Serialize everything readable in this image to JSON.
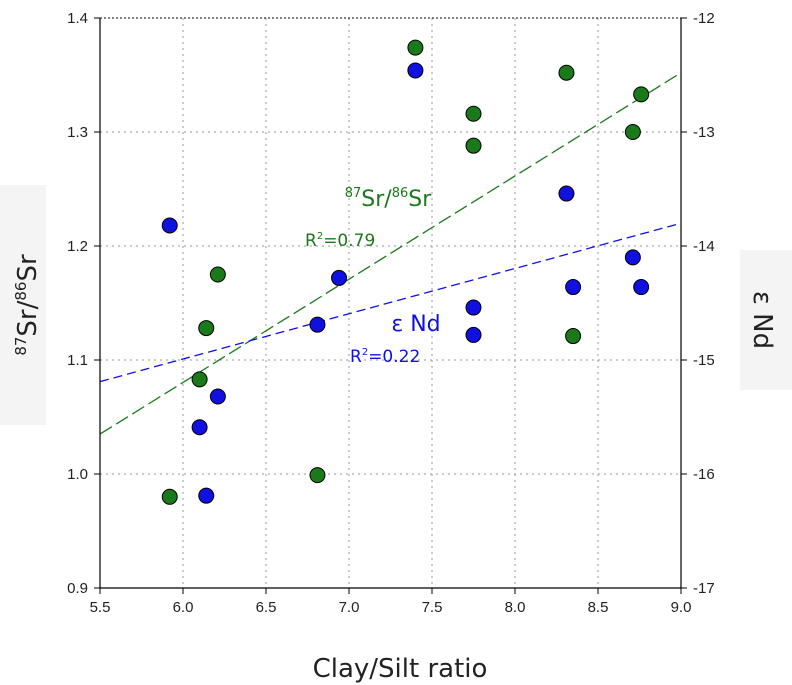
{
  "chart_data": {
    "type": "scatter",
    "xlabel": "Clay/Silt ratio",
    "ylabel_parts": {
      "sup1": "87",
      "base1": "Sr/",
      "sup2": "86",
      "base2": "Sr"
    },
    "y2label": "ε Nd",
    "xlim": [
      5.5,
      9.0
    ],
    "ylim": [
      0.9,
      1.4
    ],
    "y2lim": [
      -17,
      -12
    ],
    "x_ticks": [
      "5.5",
      "6.0",
      "6.5",
      "7.0",
      "7.5",
      "8.0",
      "8.5",
      "9.0"
    ],
    "y_ticks": [
      "0.9",
      "1.0",
      "1.1",
      "1.2",
      "1.3",
      "1.4"
    ],
    "y2_ticks": [
      "-17",
      "-16",
      "-15",
      "-14",
      "-13",
      "-12"
    ],
    "x_tick_values": [
      5.5,
      6.0,
      6.5,
      7.0,
      7.5,
      8.0,
      8.5,
      9.0
    ],
    "y_tick_values": [
      0.9,
      1.0,
      1.1,
      1.2,
      1.3,
      1.4
    ],
    "y2_tick_values": [
      -17,
      -16,
      -15,
      -14,
      -13,
      -12
    ],
    "grid": true,
    "series": [
      {
        "label_parts": {
          "sup1": "87",
          "base1": "Sr/",
          "sup2": "86",
          "base2": "Sr"
        },
        "r2_base": "R",
        "r2_sup": "2",
        "r2_value": "=0.79",
        "axis": "left",
        "color": "#1a7a1a",
        "points": [
          {
            "x": 5.92,
            "y": 0.98
          },
          {
            "x": 6.1,
            "y": 1.083
          },
          {
            "x": 6.14,
            "y": 1.128
          },
          {
            "x": 6.21,
            "y": 1.175
          },
          {
            "x": 6.81,
            "y": 0.999
          },
          {
            "x": 7.4,
            "y": 1.374
          },
          {
            "x": 7.75,
            "y": 1.316
          },
          {
            "x": 7.75,
            "y": 1.288
          },
          {
            "x": 8.31,
            "y": 1.352
          },
          {
            "x": 8.35,
            "y": 1.121
          },
          {
            "x": 8.71,
            "y": 1.3
          },
          {
            "x": 8.76,
            "y": 1.333
          }
        ],
        "fit": {
          "x": [
            5.5,
            9.0
          ],
          "y": [
            1.035,
            1.352
          ]
        }
      },
      {
        "label": "ε Nd",
        "r2_base": "R",
        "r2_sup": "2",
        "r2_value": "=0.22",
        "axis": "right",
        "color": "#1010e0",
        "points": [
          {
            "x": 5.92,
            "y": -13.82
          },
          {
            "x": 6.1,
            "y": -15.59
          },
          {
            "x": 6.14,
            "y": -16.19
          },
          {
            "x": 6.21,
            "y": -15.32
          },
          {
            "x": 6.81,
            "y": -14.69
          },
          {
            "x": 6.94,
            "y": -14.28
          },
          {
            "x": 7.4,
            "y": -12.46
          },
          {
            "x": 7.75,
            "y": -14.54
          },
          {
            "x": 7.75,
            "y": -14.78
          },
          {
            "x": 8.31,
            "y": -13.54
          },
          {
            "x": 8.35,
            "y": -14.36
          },
          {
            "x": 8.71,
            "y": -14.1
          },
          {
            "x": 8.76,
            "y": -14.36
          }
        ],
        "fit": {
          "x": [
            5.5,
            9.0
          ],
          "y": [
            -15.19,
            -13.8
          ]
        }
      }
    ]
  }
}
